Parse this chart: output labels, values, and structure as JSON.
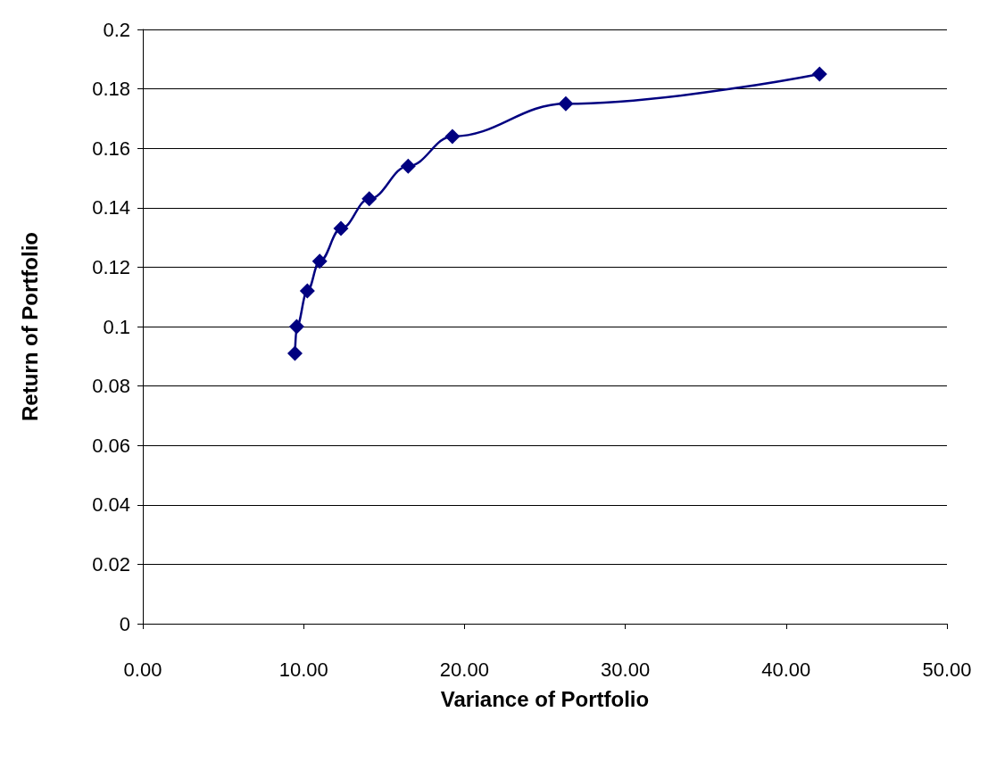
{
  "chart_data": {
    "type": "line",
    "xlabel": "Variance of Portfolio",
    "ylabel": "Return of Portfolio",
    "x": [
      9.46,
      9.57,
      10.23,
      11.0,
      12.32,
      14.08,
      16.5,
      19.25,
      26.3,
      42.08
    ],
    "series": [
      {
        "color": "#000080",
        "values": [
          0.091,
          0.1,
          0.112,
          0.122,
          0.133,
          0.143,
          0.154,
          0.164,
          0.175,
          0.185
        ]
      }
    ],
    "xlim": [
      0,
      50
    ],
    "xticks": [
      {
        "value": 0,
        "label": "0.00"
      },
      {
        "value": 10,
        "label": "10.00"
      },
      {
        "value": 20,
        "label": "20.00"
      },
      {
        "value": 30,
        "label": "30.00"
      },
      {
        "value": 40,
        "label": "40.00"
      },
      {
        "value": 50,
        "label": "50.00"
      }
    ],
    "ylim": [
      0,
      0.2
    ],
    "yticks": [
      0,
      0.02,
      0.04,
      0.06,
      0.08,
      0.1,
      0.12,
      0.14,
      0.16,
      0.18,
      0.2
    ],
    "grid": "y",
    "marker": "diamond",
    "line_style": "solid"
  }
}
